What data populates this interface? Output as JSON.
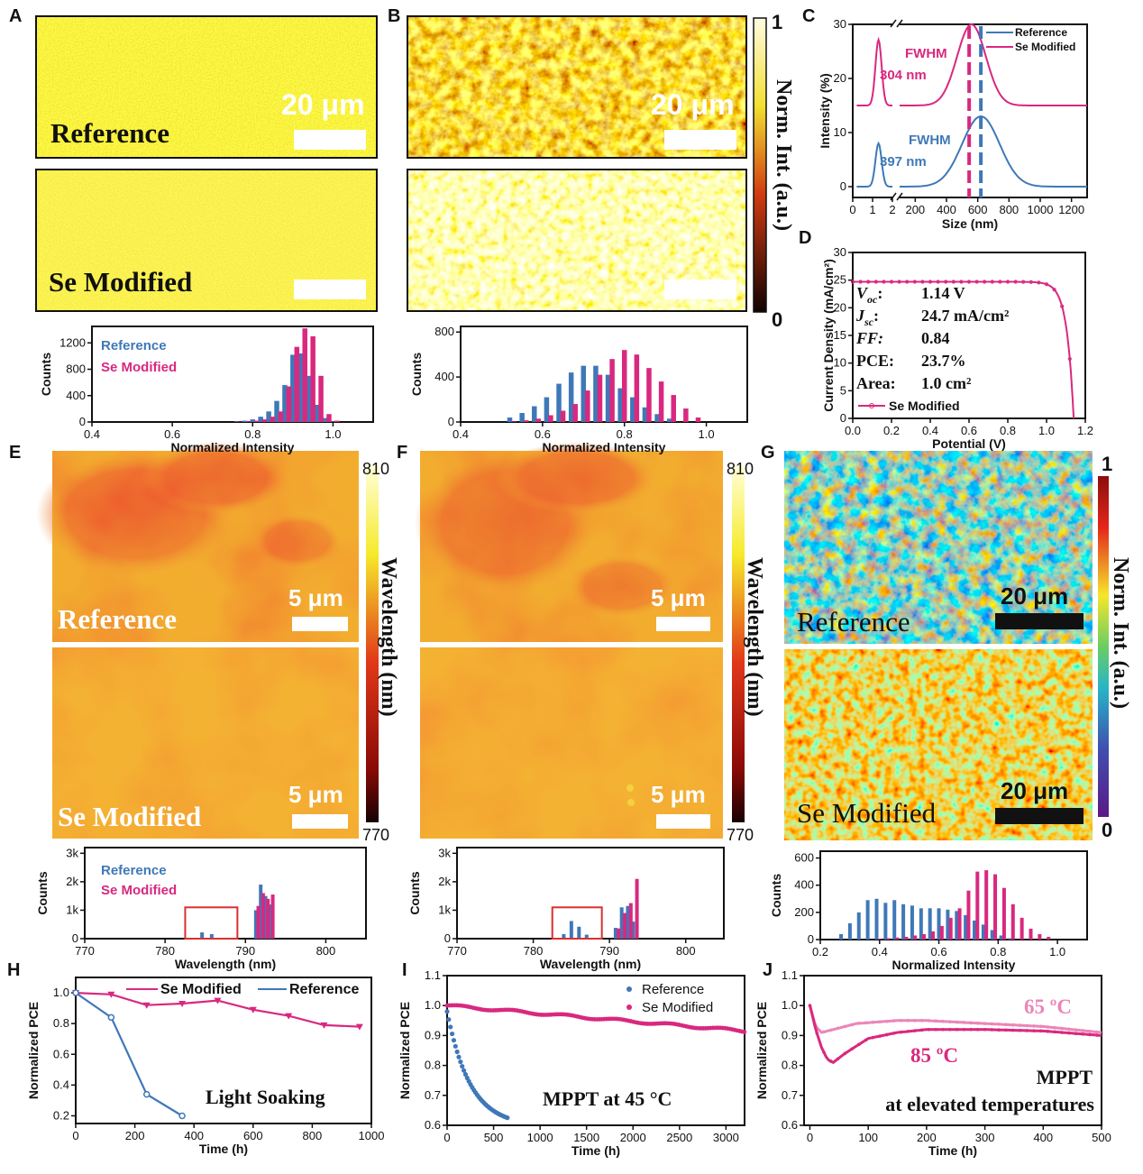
{
  "colors": {
    "reference": "#3f78b8",
    "se_modified": "#d9287f",
    "se_65c": "#ea86b8",
    "axis": "#111111",
    "box": "#d93030"
  },
  "panel_labels": [
    "A",
    "B",
    "C",
    "D",
    "E",
    "F",
    "G",
    "H",
    "I",
    "J"
  ],
  "maps": {
    "A": {
      "top_label": "Reference",
      "bottom_label": "Se Modified",
      "scale_text": "20 μm",
      "palette": "yellow-red"
    },
    "B": {
      "scale_text": "20 μm",
      "colorbar_title": "Norm. Int. (a.u.)",
      "cbar_max": "1",
      "cbar_min": "0",
      "palette": "hot"
    },
    "E": {
      "top_label": "Reference",
      "bottom_label": "Se Modified",
      "scale_text": "5 μm",
      "colorbar_title": "Wavelength (nm)",
      "cbar_max": "810",
      "cbar_min": "770",
      "palette": "orange"
    },
    "F": {
      "scale_text": "5 μm",
      "colorbar_title": "Wavelength (nm)",
      "cbar_max": "810",
      "cbar_min": "770",
      "palette": "orange"
    },
    "G": {
      "top_label": "Reference",
      "bottom_label": "Se Modified",
      "scale_text": "20 μm",
      "colorbar_title": "Norm. Int. (a.u.)",
      "cbar_max": "1",
      "cbar_min": "0",
      "palette": "jet"
    }
  },
  "chart_data": [
    {
      "panel": "A",
      "type": "bar",
      "xlabel": "Normalized Intensity",
      "ylabel": "Counts",
      "xlim": [
        0.4,
        1.1
      ],
      "ylim": [
        0,
        1450
      ],
      "xticks": [
        "0.4",
        "0.6",
        "0.8",
        "1.0"
      ],
      "yticks": [
        "0",
        "400",
        "800",
        "1200"
      ],
      "legend": [
        "Reference",
        "Se Modified"
      ],
      "series": [
        {
          "name": "Reference",
          "x": [
            0.76,
            0.78,
            0.8,
            0.82,
            0.84,
            0.86,
            0.88,
            0.9,
            0.92,
            0.94,
            0.96,
            0.98,
            1.0
          ],
          "values": [
            10,
            20,
            40,
            80,
            160,
            320,
            560,
            1020,
            1040,
            700,
            260,
            60,
            10
          ]
        },
        {
          "name": "Se Modified",
          "x": [
            0.77,
            0.79,
            0.81,
            0.83,
            0.85,
            0.87,
            0.89,
            0.91,
            0.93,
            0.95,
            0.97,
            0.99,
            1.01
          ],
          "values": [
            5,
            10,
            20,
            40,
            80,
            160,
            540,
            1140,
            1420,
            1300,
            700,
            120,
            20
          ]
        }
      ]
    },
    {
      "panel": "B",
      "type": "bar",
      "xlabel": "Normalized Intensity",
      "ylabel": "Counts",
      "xlim": [
        0.4,
        1.1
      ],
      "ylim": [
        0,
        850
      ],
      "xticks": [
        "0.4",
        "0.6",
        "0.8",
        "1.0"
      ],
      "yticks": [
        "0",
        "400",
        "800"
      ],
      "series": [
        {
          "name": "Reference",
          "x": [
            0.52,
            0.55,
            0.58,
            0.61,
            0.64,
            0.67,
            0.7,
            0.73,
            0.76,
            0.79,
            0.82,
            0.85,
            0.88,
            0.91
          ],
          "values": [
            40,
            80,
            140,
            220,
            340,
            440,
            500,
            500,
            420,
            300,
            220,
            130,
            70,
            30
          ]
        },
        {
          "name": "Se Modified",
          "x": [
            0.53,
            0.56,
            0.59,
            0.62,
            0.65,
            0.68,
            0.71,
            0.74,
            0.77,
            0.8,
            0.83,
            0.86,
            0.89,
            0.92,
            0.95,
            0.98
          ],
          "values": [
            5,
            15,
            30,
            60,
            100,
            160,
            280,
            420,
            560,
            640,
            600,
            480,
            360,
            240,
            120,
            40
          ]
        }
      ]
    },
    {
      "panel": "C",
      "type": "line",
      "xlabel": "Size (nm)",
      "ylabel": "Intensity (%)",
      "xticks": [
        "0",
        "1",
        "2",
        "200",
        "400",
        "600",
        "800",
        "1000",
        "1200"
      ],
      "yticks": [
        "0",
        "10",
        "20",
        "30"
      ],
      "legend": [
        "Reference",
        "Se Modified"
      ],
      "annotations": [
        {
          "text": "FWHM",
          "series": "Se Modified"
        },
        {
          "text": "304 nm",
          "series": "Se Modified"
        },
        {
          "text": "FWHM",
          "series": "Reference"
        },
        {
          "text": "397 nm",
          "series": "Reference"
        }
      ],
      "series": [
        {
          "name": "Reference",
          "peak_small_x": 1.3,
          "peak_small_y": 8,
          "peak_x": 620,
          "peak_y": 13,
          "baseline": 0
        },
        {
          "name": "Se Modified",
          "peak_small_x": 1.3,
          "peak_small_y": 27,
          "peak_x": 560,
          "peak_y": 30,
          "baseline": 15
        }
      ],
      "dashed_lines_x": [
        545,
        620
      ]
    },
    {
      "panel": "D",
      "type": "line",
      "xlabel": "Potential (V)",
      "ylabel": "Current Density (mA/cm²)",
      "xlim": [
        0.0,
        1.2
      ],
      "ylim": [
        0,
        30
      ],
      "xticks": [
        "0.0",
        "0.2",
        "0.4",
        "0.6",
        "0.8",
        "1.0",
        "1.2"
      ],
      "yticks": [
        "0",
        "5",
        "10",
        "15",
        "20",
        "25",
        "30"
      ],
      "legend": [
        "Se Modified"
      ],
      "params": [
        {
          "name": "V",
          "sub": "oc",
          "sep": ":",
          "value": "1.14 V"
        },
        {
          "name": "J",
          "sub": "sc",
          "sep": ":",
          "value": "24.7 mA/cm²"
        },
        {
          "name": "FF:",
          "sub": "",
          "sep": "",
          "value": "0.84"
        },
        {
          "name": "PCE:",
          "sub": "",
          "sep": "",
          "value": "23.7%"
        },
        {
          "name": "Area:",
          "sub": "",
          "sep": "",
          "value": "1.0 cm²"
        }
      ],
      "series": [
        {
          "name": "Se Modified",
          "voc": 1.14,
          "jsc": 24.7,
          "ff": 0.84
        }
      ]
    },
    {
      "panel": "E",
      "type": "bar",
      "xlabel": "Wavelength (nm)",
      "ylabel": "Counts",
      "xlim": [
        770,
        805
      ],
      "ylim": [
        0,
        3200
      ],
      "xticks": [
        "770",
        "780",
        "790",
        "800"
      ],
      "yticks": [
        "0",
        "1k",
        "2k",
        "3k"
      ],
      "legend": [
        "Reference",
        "Se Modified"
      ],
      "highlight_box": [
        782.5,
        789,
        0,
        1100
      ],
      "series": [
        {
          "name": "Reference",
          "x": [
            784.6,
            785.8,
            791.3,
            791.9,
            792.5,
            793.1
          ],
          "values": [
            220,
            160,
            1000,
            1900,
            1500,
            1200
          ]
        },
        {
          "name": "Se Modified",
          "x": [
            791.6,
            792.2,
            792.8,
            793.4
          ],
          "values": [
            1150,
            1600,
            1400,
            1550
          ]
        }
      ]
    },
    {
      "panel": "F",
      "type": "bar",
      "xlabel": "Wavelength (nm)",
      "ylabel": "Counts",
      "xlim": [
        770,
        805
      ],
      "ylim": [
        0,
        3200
      ],
      "xticks": [
        "770",
        "780",
        "790",
        "800"
      ],
      "yticks": [
        "0",
        "1k",
        "2k",
        "3k"
      ],
      "highlight_box": [
        782.5,
        789,
        0,
        1100
      ],
      "series": [
        {
          "name": "Reference",
          "x": [
            784.0,
            785.0,
            786.0,
            787.0,
            790.8,
            791.6,
            792.4,
            793.1
          ],
          "values": [
            160,
            620,
            420,
            140,
            380,
            1100,
            1150,
            600
          ]
        },
        {
          "name": "Se Modified",
          "x": [
            791.2,
            792.0,
            792.8,
            793.6
          ],
          "values": [
            360,
            900,
            1250,
            2100
          ]
        }
      ]
    },
    {
      "panel": "G",
      "type": "bar",
      "xlabel": "Normalized Intensity",
      "ylabel": "Counts",
      "xlim": [
        0.2,
        1.1
      ],
      "ylim": [
        0,
        650
      ],
      "xticks": [
        "0.2",
        "0.4",
        "0.6",
        "0.8",
        "1.0"
      ],
      "yticks": [
        "0",
        "200",
        "400",
        "600"
      ],
      "series": [
        {
          "name": "Reference",
          "x": [
            0.27,
            0.3,
            0.33,
            0.36,
            0.39,
            0.42,
            0.45,
            0.48,
            0.51,
            0.54,
            0.57,
            0.6,
            0.63,
            0.66,
            0.69,
            0.72,
            0.75,
            0.78,
            0.81,
            0.84
          ],
          "values": [
            40,
            120,
            200,
            290,
            300,
            270,
            290,
            260,
            250,
            230,
            230,
            230,
            220,
            210,
            180,
            140,
            110,
            70,
            30,
            10
          ]
        },
        {
          "name": "Se Modified",
          "x": [
            0.4,
            0.43,
            0.46,
            0.49,
            0.52,
            0.55,
            0.58,
            0.61,
            0.64,
            0.67,
            0.7,
            0.73,
            0.76,
            0.79,
            0.82,
            0.85,
            0.88,
            0.91,
            0.94,
            0.97
          ],
          "values": [
            5,
            10,
            15,
            20,
            30,
            40,
            60,
            100,
            160,
            230,
            360,
            500,
            510,
            480,
            380,
            260,
            160,
            80,
            40,
            20
          ]
        }
      ]
    },
    {
      "panel": "H",
      "type": "line",
      "xlabel": "Time (h)",
      "ylabel": "Normalized PCE",
      "xlim": [
        0,
        1000
      ],
      "ylim": [
        0.15,
        1.1
      ],
      "xticks": [
        "0",
        "200",
        "400",
        "600",
        "800",
        "1000"
      ],
      "yticks": [
        "0.2",
        "0.4",
        "0.6",
        "0.8",
        "1.0"
      ],
      "annotation": "Light Soaking",
      "legend": [
        "Se Modified",
        "Reference"
      ],
      "series": [
        {
          "name": "Se Modified",
          "x": [
            0,
            120,
            240,
            360,
            480,
            600,
            720,
            840,
            960
          ],
          "values": [
            1.0,
            0.99,
            0.92,
            0.93,
            0.95,
            0.89,
            0.85,
            0.79,
            0.78
          ]
        },
        {
          "name": "Reference",
          "x": [
            0,
            120,
            240,
            360
          ],
          "values": [
            1.0,
            0.84,
            0.34,
            0.2
          ]
        }
      ]
    },
    {
      "panel": "I",
      "type": "scatter",
      "xlabel": "Time (h)",
      "ylabel": "Normalized PCE",
      "xlim": [
        0,
        3200
      ],
      "ylim": [
        0.6,
        1.1
      ],
      "xticks": [
        "0",
        "500",
        "1000",
        "1500",
        "2000",
        "2500",
        "3000"
      ],
      "yticks": [
        "0.6",
        "0.7",
        "0.8",
        "0.9",
        "1.0",
        "1.1"
      ],
      "annotation": "MPPT at 45 °C",
      "legend": [
        "Reference",
        "Se Modified"
      ],
      "series": [
        {
          "name": "Reference",
          "x0": 0,
          "x1": 650,
          "y0": 0.98,
          "y1": 0.625
        },
        {
          "name": "Se Modified",
          "x0": 0,
          "x1": 3200,
          "y0": 1.0,
          "y1": 0.915
        }
      ]
    },
    {
      "panel": "J",
      "type": "line",
      "xlabel": "Time (h)",
      "ylabel": "Normalized PCE",
      "xlim": [
        -10,
        500
      ],
      "ylim": [
        0.6,
        1.1
      ],
      "xticks": [
        "0",
        "100",
        "200",
        "300",
        "400",
        "500"
      ],
      "yticks": [
        "0.6",
        "0.7",
        "0.8",
        "0.9",
        "1.0",
        "1.1"
      ],
      "annotation_lines": [
        "MPPT",
        "at elevated temperatures"
      ],
      "series": [
        {
          "name": "65 °C",
          "label": "65 ºC",
          "x": [
            0,
            10,
            20,
            40,
            80,
            150,
            200,
            300,
            400,
            500
          ],
          "values": [
            1.0,
            0.93,
            0.91,
            0.92,
            0.94,
            0.95,
            0.95,
            0.94,
            0.93,
            0.91
          ]
        },
        {
          "name": "85 °C",
          "label": "85 ºC",
          "x": [
            0,
            10,
            20,
            30,
            40,
            60,
            100,
            150,
            200,
            300,
            400,
            500
          ],
          "values": [
            1.0,
            0.92,
            0.86,
            0.82,
            0.81,
            0.84,
            0.89,
            0.91,
            0.92,
            0.92,
            0.915,
            0.9
          ]
        }
      ]
    }
  ]
}
